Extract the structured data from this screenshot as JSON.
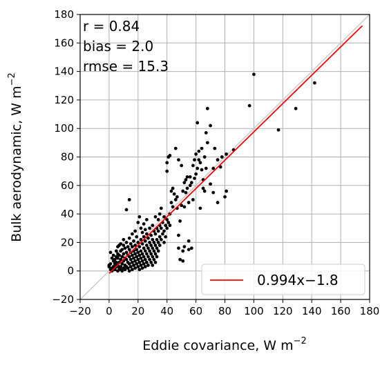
{
  "chart_data": {
    "type": "scatter",
    "xlabel": "Eddie covariance, W m",
    "xlabel_sup": "−2",
    "ylabel": "Bulk aerodynamic, W m",
    "ylabel_sup": "−2",
    "xlim": [
      -20,
      180
    ],
    "ylim": [
      -20,
      180
    ],
    "xticks": [
      -20,
      0,
      20,
      40,
      60,
      80,
      100,
      120,
      140,
      160,
      180
    ],
    "yticks": [
      -20,
      0,
      20,
      40,
      60,
      80,
      100,
      120,
      140,
      160,
      180
    ],
    "tick_labels_x": [
      "−20",
      "0",
      "20",
      "40",
      "60",
      "80",
      "100",
      "120",
      "140",
      "160",
      "180"
    ],
    "tick_labels_y": [
      "−20",
      "0",
      "20",
      "40",
      "60",
      "80",
      "100",
      "120",
      "140",
      "160",
      "180"
    ],
    "grid": true,
    "stats": [
      "r = 0.84",
      "bias = 2.0",
      "rmse = 15.3"
    ],
    "one_to_one_line": {
      "x": [
        -20,
        180
      ],
      "y": [
        -20,
        180
      ],
      "color": "#cccccc"
    },
    "fit_line": {
      "x": [
        0,
        175
      ],
      "y": [
        -1.8,
        172.15
      ],
      "color": "#ff0000",
      "label": "0.994x−1.8"
    },
    "legend_position": "lower-right",
    "points": [
      [
        0,
        4
      ],
      [
        0,
        3
      ],
      [
        1,
        1
      ],
      [
        1,
        5
      ],
      [
        1,
        13
      ],
      [
        2,
        2
      ],
      [
        2,
        0
      ],
      [
        2,
        9
      ],
      [
        3,
        3
      ],
      [
        3,
        7
      ],
      [
        3,
        11
      ],
      [
        4,
        1
      ],
      [
        4,
        5
      ],
      [
        4,
        8
      ],
      [
        4,
        2
      ],
      [
        5,
        3
      ],
      [
        5,
        6
      ],
      [
        5,
        10
      ],
      [
        5,
        14
      ],
      [
        6,
        0
      ],
      [
        6,
        4
      ],
      [
        6,
        9
      ],
      [
        6,
        12
      ],
      [
        6,
        17
      ],
      [
        7,
        2
      ],
      [
        7,
        6
      ],
      [
        7,
        11
      ],
      [
        7,
        18
      ],
      [
        8,
        1
      ],
      [
        8,
        3
      ],
      [
        8,
        8
      ],
      [
        8,
        14
      ],
      [
        8,
        19
      ],
      [
        9,
        0
      ],
      [
        9,
        5
      ],
      [
        9,
        10
      ],
      [
        9,
        15
      ],
      [
        10,
        2
      ],
      [
        10,
        7
      ],
      [
        10,
        12
      ],
      [
        10,
        18
      ],
      [
        10,
        22
      ],
      [
        11,
        1
      ],
      [
        11,
        4
      ],
      [
        11,
        9
      ],
      [
        11,
        16
      ],
      [
        12,
        3
      ],
      [
        12,
        8
      ],
      [
        12,
        13
      ],
      [
        12,
        20
      ],
      [
        12,
        43
      ],
      [
        13,
        2
      ],
      [
        13,
        6
      ],
      [
        13,
        11
      ],
      [
        13,
        17
      ],
      [
        14,
        0
      ],
      [
        14,
        5
      ],
      [
        14,
        10
      ],
      [
        14,
        15
      ],
      [
        14,
        23
      ],
      [
        14,
        50
      ],
      [
        15,
        3
      ],
      [
        15,
        8
      ],
      [
        15,
        13
      ],
      [
        15,
        19
      ],
      [
        16,
        1
      ],
      [
        16,
        6
      ],
      [
        16,
        11
      ],
      [
        16,
        17
      ],
      [
        16,
        26
      ],
      [
        17,
        4
      ],
      [
        17,
        9
      ],
      [
        17,
        14
      ],
      [
        17,
        21
      ],
      [
        18,
        2
      ],
      [
        18,
        7
      ],
      [
        18,
        12
      ],
      [
        18,
        18
      ],
      [
        18,
        28
      ],
      [
        19,
        5
      ],
      [
        19,
        10
      ],
      [
        19,
        15
      ],
      [
        19,
        24
      ],
      [
        20,
        3
      ],
      [
        20,
        8
      ],
      [
        20,
        13
      ],
      [
        20,
        20
      ],
      [
        20,
        34
      ],
      [
        21,
        1
      ],
      [
        21,
        6
      ],
      [
        21,
        11
      ],
      [
        21,
        17
      ],
      [
        21,
        38
      ],
      [
        22,
        4
      ],
      [
        22,
        9
      ],
      [
        22,
        14
      ],
      [
        22,
        22
      ],
      [
        22,
        30
      ],
      [
        23,
        2
      ],
      [
        23,
        7
      ],
      [
        23,
        12
      ],
      [
        23,
        19
      ],
      [
        23,
        27
      ],
      [
        24,
        5
      ],
      [
        24,
        10
      ],
      [
        24,
        16
      ],
      [
        24,
        24
      ],
      [
        24,
        33
      ],
      [
        25,
        3
      ],
      [
        25,
        8
      ],
      [
        25,
        14
      ],
      [
        25,
        21
      ],
      [
        25,
        29
      ],
      [
        26,
        6
      ],
      [
        26,
        12
      ],
      [
        26,
        18
      ],
      [
        26,
        26
      ],
      [
        26,
        36
      ],
      [
        27,
        4
      ],
      [
        27,
        10
      ],
      [
        27,
        16
      ],
      [
        27,
        23
      ],
      [
        28,
        8
      ],
      [
        28,
        14
      ],
      [
        28,
        20
      ],
      [
        28,
        30
      ],
      [
        29,
        6
      ],
      [
        29,
        12
      ],
      [
        29,
        18
      ],
      [
        29,
        25
      ],
      [
        30,
        4
      ],
      [
        30,
        10
      ],
      [
        30,
        16
      ],
      [
        30,
        22
      ],
      [
        30,
        32
      ],
      [
        31,
        8
      ],
      [
        31,
        14
      ],
      [
        31,
        20
      ],
      [
        31,
        28
      ],
      [
        32,
        6
      ],
      [
        32,
        12
      ],
      [
        32,
        18
      ],
      [
        32,
        26
      ],
      [
        32,
        38
      ],
      [
        33,
        10
      ],
      [
        33,
        16
      ],
      [
        33,
        22
      ],
      [
        33,
        30
      ],
      [
        34,
        14
      ],
      [
        34,
        20
      ],
      [
        34,
        28
      ],
      [
        34,
        36
      ],
      [
        35,
        18
      ],
      [
        35,
        24
      ],
      [
        35,
        32
      ],
      [
        35,
        40
      ],
      [
        36,
        22
      ],
      [
        36,
        30
      ],
      [
        36,
        44
      ],
      [
        37,
        26
      ],
      [
        37,
        34
      ],
      [
        38,
        20
      ],
      [
        38,
        28
      ],
      [
        38,
        38
      ],
      [
        39,
        24
      ],
      [
        39,
        32
      ],
      [
        40,
        30
      ],
      [
        40,
        36
      ],
      [
        40,
        70
      ],
      [
        40,
        76
      ],
      [
        41,
        34
      ],
      [
        41,
        80
      ],
      [
        42,
        32
      ],
      [
        42,
        40
      ],
      [
        42,
        81
      ],
      [
        43,
        48
      ],
      [
        43,
        56
      ],
      [
        44,
        45
      ],
      [
        44,
        58
      ],
      [
        45,
        54
      ],
      [
        46,
        50
      ],
      [
        46,
        86
      ],
      [
        47,
        52
      ],
      [
        47,
        44
      ],
      [
        48,
        25
      ],
      [
        48,
        16
      ],
      [
        48,
        78
      ],
      [
        49,
        35
      ],
      [
        49,
        8
      ],
      [
        50,
        46
      ],
      [
        50,
        74
      ],
      [
        51,
        56
      ],
      [
        51,
        14
      ],
      [
        51,
        7
      ],
      [
        52,
        62
      ],
      [
        52,
        45
      ],
      [
        52,
        17
      ],
      [
        53,
        55
      ],
      [
        53,
        64
      ],
      [
        54,
        58
      ],
      [
        54,
        66
      ],
      [
        55,
        48
      ],
      [
        55,
        21
      ],
      [
        55,
        15
      ],
      [
        56,
        60
      ],
      [
        56,
        66
      ],
      [
        57,
        62
      ],
      [
        57,
        16
      ],
      [
        58,
        50
      ],
      [
        58,
        74
      ],
      [
        59,
        65
      ],
      [
        59,
        78
      ],
      [
        60,
        68
      ],
      [
        60,
        82
      ],
      [
        61,
        104
      ],
      [
        61,
        72
      ],
      [
        62,
        84
      ],
      [
        62,
        78
      ],
      [
        63,
        76
      ],
      [
        63,
        44
      ],
      [
        64,
        71
      ],
      [
        64,
        86
      ],
      [
        65,
        58
      ],
      [
        65,
        64
      ],
      [
        66,
        56
      ],
      [
        66,
        80
      ],
      [
        67,
        97
      ],
      [
        67,
        72
      ],
      [
        68,
        114
      ],
      [
        68,
        90
      ],
      [
        70,
        102
      ],
      [
        70,
        61
      ],
      [
        72,
        55
      ],
      [
        72,
        72
      ],
      [
        73,
        86
      ],
      [
        75,
        48
      ],
      [
        75,
        78
      ],
      [
        77,
        73
      ],
      [
        78,
        80
      ],
      [
        80,
        52
      ],
      [
        81,
        56
      ],
      [
        81,
        82
      ],
      [
        86,
        85
      ],
      [
        97,
        116
      ],
      [
        100,
        138
      ],
      [
        117,
        99
      ],
      [
        129,
        114
      ],
      [
        142,
        132
      ]
    ]
  }
}
